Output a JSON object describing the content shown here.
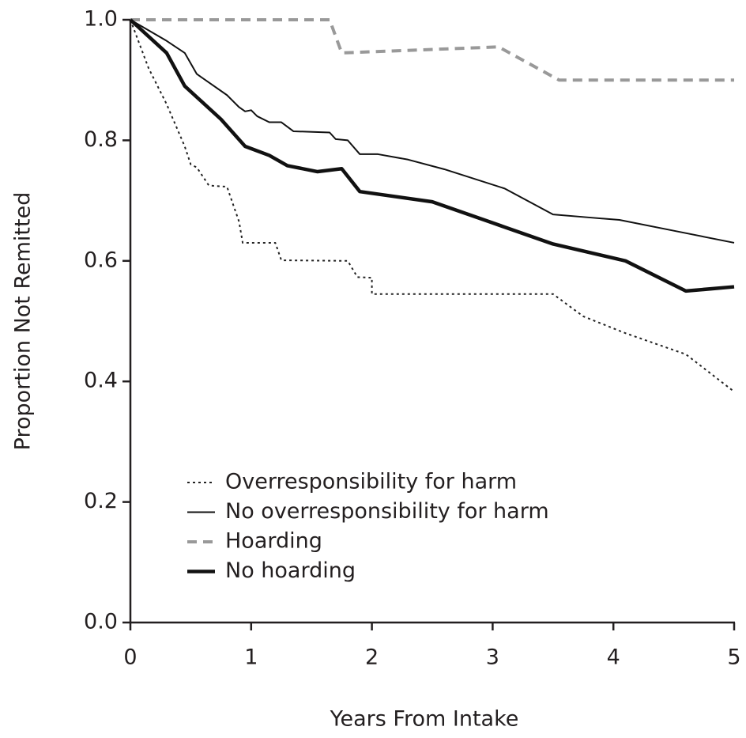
{
  "chart_data": {
    "type": "line",
    "xlabel": "Years From Intake",
    "ylabel": "Proportion Not Remitted",
    "xlim": [
      0,
      5
    ],
    "xticks": [
      0,
      1,
      2,
      3,
      4,
      5
    ],
    "ylim": [
      0,
      1
    ],
    "yticks": [
      {
        "value": 0,
        "label": "0.0"
      },
      0.2,
      0.4,
      0.6,
      0.8,
      {
        "value": 1,
        "label": "1.0"
      }
    ],
    "legend": "lower left",
    "series": [
      {
        "name": "Overresponsibility for harm",
        "color": "#222222",
        "style": "dotted",
        "x": [
          0,
          0.15,
          0.3,
          0.45,
          0.5,
          0.55,
          0.65,
          0.8,
          0.9,
          0.93,
          1.2,
          1.25,
          1.8,
          1.88,
          2.0,
          2.0,
          3.5,
          3.75,
          4.1,
          4.6,
          5
        ],
        "values": [
          1,
          0.92,
          0.86,
          0.79,
          0.76,
          0.755,
          0.725,
          0.723,
          0.665,
          0.63,
          0.63,
          0.601,
          0.6,
          0.573,
          0.572,
          0.545,
          0.545,
          0.508,
          0.48,
          0.445,
          0.383
        ]
      },
      {
        "name": "No overresponsibility for harm",
        "color": "#111111",
        "style": "thin",
        "x": [
          0,
          0.3,
          0.45,
          0.55,
          0.8,
          0.9,
          0.95,
          1.0,
          1.05,
          1.15,
          1.25,
          1.35,
          1.65,
          1.7,
          1.8,
          1.9,
          2.05,
          2.3,
          2.6,
          3.1,
          3.5,
          3.8,
          4.05,
          4.5,
          5
        ],
        "values": [
          1,
          0.965,
          0.945,
          0.91,
          0.875,
          0.855,
          0.848,
          0.85,
          0.84,
          0.83,
          0.83,
          0.815,
          0.813,
          0.802,
          0.8,
          0.777,
          0.777,
          0.768,
          0.752,
          0.72,
          0.677,
          0.672,
          0.668,
          0.65,
          0.63
        ]
      },
      {
        "name": "Hoarding",
        "color": "#999999",
        "style": "dashed",
        "x": [
          0,
          1.65,
          1.75,
          3.05,
          3.55,
          5
        ],
        "values": [
          1,
          1,
          0.945,
          0.955,
          0.9,
          0.9
        ]
      },
      {
        "name": "No hoarding",
        "color": "#111111",
        "style": "thick",
        "x": [
          0,
          0.3,
          0.45,
          0.75,
          0.95,
          1.15,
          1.3,
          1.55,
          1.75,
          1.9,
          2.5,
          3.0,
          3.5,
          4.1,
          4.6,
          5
        ],
        "values": [
          1,
          0.945,
          0.89,
          0.835,
          0.79,
          0.775,
          0.758,
          0.748,
          0.753,
          0.715,
          0.698,
          0.663,
          0.628,
          0.6,
          0.55,
          0.557
        ]
      }
    ]
  }
}
